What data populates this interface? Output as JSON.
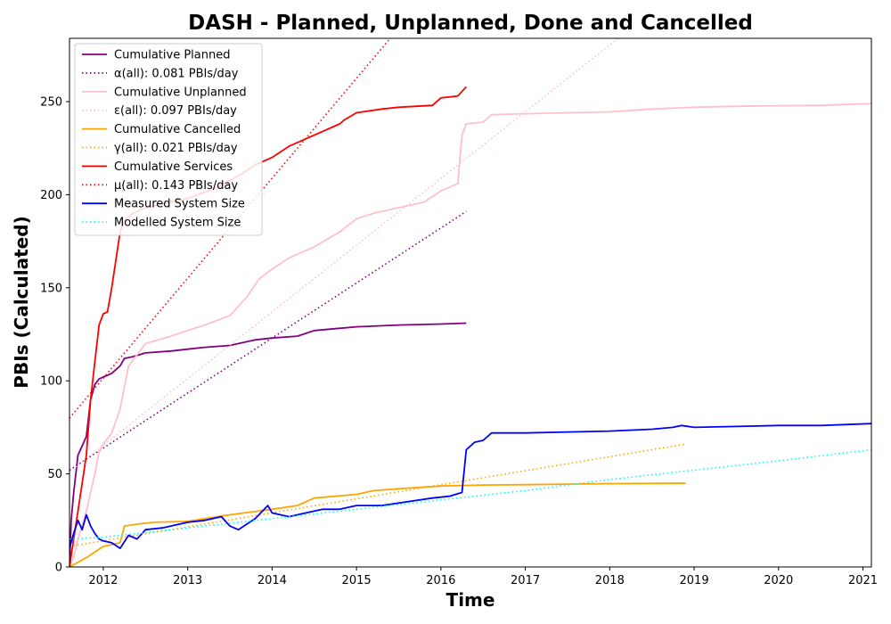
{
  "chart_data": {
    "type": "line",
    "title": "DASH - Planned, Unplanned, Done  and Cancelled",
    "xlabel": "Time",
    "ylabel": "PBIs (Calculated)",
    "xlim": [
      2011.6,
      2021.1
    ],
    "ylim": [
      0,
      284
    ],
    "x_ticks": [
      "2012",
      "2013",
      "2014",
      "2015",
      "2016",
      "2017",
      "2018",
      "2019",
      "2020",
      "2021"
    ],
    "y_ticks": [
      "0",
      "50",
      "100",
      "150",
      "200",
      "250"
    ],
    "legend_position": "top-left",
    "grid": false,
    "series": [
      {
        "name": "Cumulative Planned",
        "style": "solid",
        "color": "#800080",
        "x": [
          2011.6,
          2011.62,
          2011.65,
          2011.7,
          2011.75,
          2011.8,
          2011.85,
          2011.9,
          2011.95,
          2012.0,
          2012.1,
          2012.2,
          2012.25,
          2012.35,
          2012.5,
          2012.8,
          2013.0,
          2013.2,
          2013.5,
          2013.8,
          2014.0,
          2014.3,
          2014.5,
          2015.0,
          2015.5,
          2016.0,
          2016.3
        ],
        "y": [
          0,
          25,
          40,
          60,
          65,
          70,
          90,
          98,
          101,
          102,
          104,
          108,
          112,
          113,
          115,
          116,
          117,
          118,
          119,
          122,
          123,
          124,
          127,
          129,
          130,
          130.5,
          131
        ]
      },
      {
        "name": "α(all): 0.081 PBIs/day",
        "style": "dotted",
        "color": "#800080",
        "x": [
          2011.6,
          2016.3
        ],
        "y": [
          52,
          191
        ]
      },
      {
        "name": "Cumulative Unplanned",
        "style": "solid",
        "color": "#ffc0cb",
        "x": [
          2011.6,
          2011.65,
          2011.7,
          2011.8,
          2011.9,
          2011.95,
          2012.0,
          2012.1,
          2012.2,
          2012.3,
          2012.5,
          2012.8,
          2013.0,
          2013.2,
          2013.5,
          2013.7,
          2013.85,
          2014.0,
          2014.2,
          2014.5,
          2014.8,
          2015.0,
          2015.2,
          2015.5,
          2015.8,
          2016.0,
          2016.2,
          2016.25,
          2016.3,
          2016.5,
          2016.6,
          2017.0,
          2017.5,
          2018.0,
          2018.5,
          2019.0,
          2019.5,
          2020.0,
          2020.5,
          2021.1
        ],
        "y": [
          0,
          5,
          15,
          30,
          50,
          62,
          66,
          72,
          85,
          108,
          120,
          124,
          127,
          130,
          135,
          145,
          155,
          160,
          166,
          172,
          180,
          187,
          190,
          193,
          196,
          202,
          206,
          232,
          238,
          239,
          243,
          243.5,
          244,
          244.5,
          246,
          247,
          247.5,
          247.8,
          248,
          249
        ]
      },
      {
        "name": "ε(all): 0.097 PBIs/day",
        "style": "dotted",
        "color": "#ffc0cb",
        "x": [
          2011.6,
          2018.1
        ],
        "y": [
          51,
          284
        ]
      },
      {
        "name": "Cumulative Cancelled",
        "style": "solid",
        "color": "#ffa500",
        "x": [
          2011.6,
          2011.8,
          2011.9,
          2012.0,
          2012.2,
          2012.25,
          2012.4,
          2012.6,
          2013.0,
          2013.5,
          2014.0,
          2014.3,
          2014.5,
          2015.0,
          2015.2,
          2015.5,
          2016.0,
          2016.5,
          2017.0,
          2017.5,
          2018.0,
          2018.9
        ],
        "y": [
          0,
          5,
          8,
          11,
          13,
          22,
          23,
          24,
          24.5,
          28,
          31,
          33,
          37,
          39,
          41,
          42,
          43.5,
          44,
          44.2,
          44.5,
          44.8,
          45
        ]
      },
      {
        "name": "γ(all): 0.021 PBIs/day",
        "style": "dotted",
        "color": "#ffa500",
        "x": [
          2011.6,
          2018.9
        ],
        "y": [
          11,
          66
        ]
      },
      {
        "name": "Cumulative Services",
        "style": "solid",
        "color": "#ff0000",
        "x": [
          2011.6,
          2011.65,
          2011.7,
          2011.8,
          2011.85,
          2011.9,
          2011.95,
          2012.0,
          2012.05,
          2012.1,
          2012.15,
          2012.2,
          2012.25,
          2012.35,
          2012.5,
          2012.8,
          2013.0,
          2013.3,
          2013.6,
          2013.8,
          2014.0,
          2014.2,
          2014.5,
          2014.8,
          2014.85,
          2015.0,
          2015.3,
          2015.5,
          2015.9,
          2016.0,
          2016.2,
          2016.3
        ],
        "y": [
          0,
          15,
          30,
          60,
          90,
          110,
          130,
          136,
          137,
          150,
          165,
          180,
          186,
          190,
          193,
          196,
          198,
          203,
          210,
          216,
          220,
          226,
          232,
          238,
          240,
          244,
          246,
          247,
          248,
          252,
          253,
          258
        ]
      },
      {
        "name": "μ(all): 0.143 PBIs/day",
        "style": "dotted",
        "color": "#ff0000",
        "x": [
          2011.6,
          2015.4
        ],
        "y": [
          80,
          284
        ]
      },
      {
        "name": "Measured System Size",
        "style": "solid",
        "color": "#0000ff",
        "x": [
          2011.6,
          2011.65,
          2011.7,
          2011.75,
          2011.8,
          2011.85,
          2011.9,
          2011.95,
          2012.0,
          2012.1,
          2012.2,
          2012.3,
          2012.4,
          2012.5,
          2012.7,
          2012.9,
          2013.0,
          2013.2,
          2013.4,
          2013.5,
          2013.6,
          2013.8,
          2013.95,
          2014.0,
          2014.2,
          2014.4,
          2014.6,
          2014.8,
          2015.0,
          2015.3,
          2015.6,
          2015.9,
          2016.1,
          2016.25,
          2016.3,
          2016.4,
          2016.5,
          2016.6,
          2017.0,
          2017.5,
          2018.0,
          2018.5,
          2018.75,
          2018.85,
          2019.0,
          2019.5,
          2020.0,
          2020.5,
          2021.1
        ],
        "y": [
          10,
          18,
          25,
          20,
          28,
          22,
          18,
          15,
          14,
          13,
          10,
          17,
          15,
          20,
          21,
          23,
          24,
          25,
          27,
          22,
          20,
          26,
          33,
          29,
          27,
          29,
          31,
          31,
          33,
          33,
          35,
          37,
          38,
          40,
          63,
          67,
          68,
          72,
          72,
          72.5,
          73,
          74,
          75,
          76,
          75,
          75.5,
          76,
          76,
          77
        ]
      },
      {
        "name": "Modelled System Size",
        "style": "dotted",
        "color": "#00ffff",
        "x": [
          2011.6,
          2012.0,
          2013.0,
          2014.0,
          2015.0,
          2016.0,
          2017.0,
          2018.0,
          2019.0,
          2020.0,
          2021.1
        ],
        "y": [
          15,
          16,
          21,
          26,
          31,
          36,
          41,
          47,
          52,
          57,
          63
        ]
      }
    ]
  }
}
